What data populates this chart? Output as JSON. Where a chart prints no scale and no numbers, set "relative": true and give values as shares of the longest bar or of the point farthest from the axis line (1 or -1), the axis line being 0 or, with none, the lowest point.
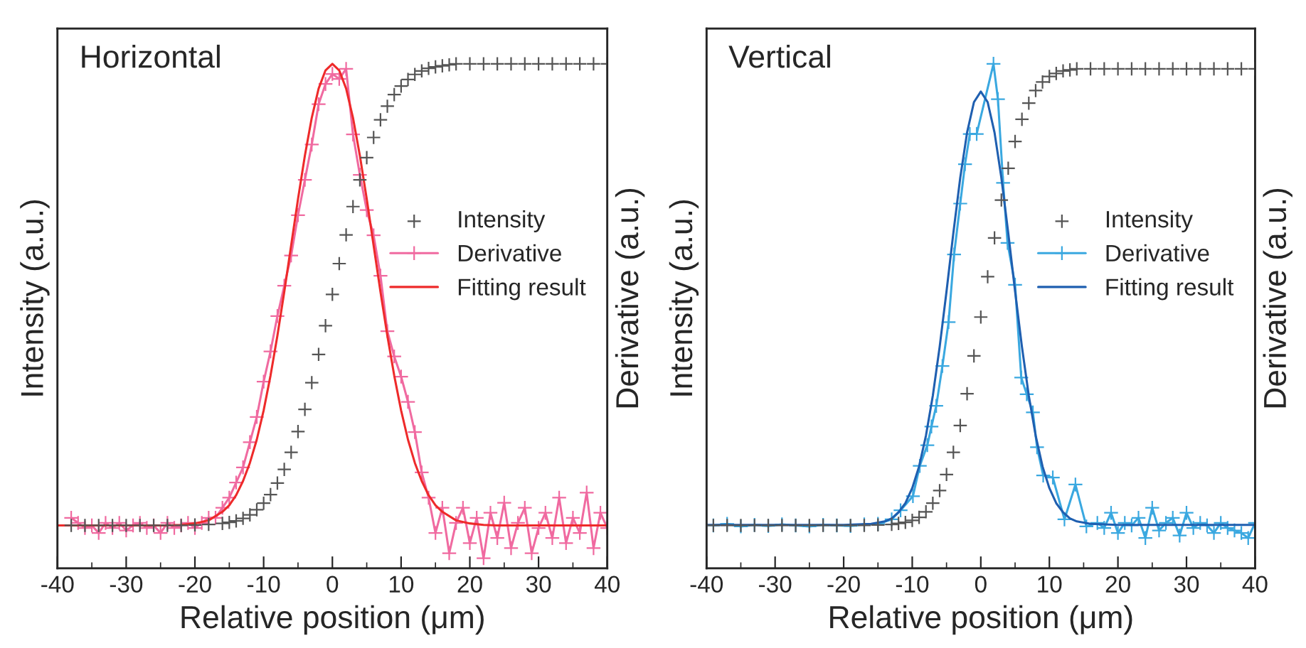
{
  "chart_data": [
    {
      "type": "line",
      "title": "Horizontal",
      "xlabel": "Relative position (μm)",
      "ylabel": "Intensity (a.u.)",
      "y2label": "Derivative (a.u.)",
      "relative": true,
      "xlim": [
        -40,
        40
      ],
      "xticks": [
        -40,
        -30,
        -20,
        -10,
        0,
        10,
        20,
        30,
        40
      ],
      "grid": false,
      "legend": "right",
      "series": [
        {
          "name": "Intensity",
          "type": "scatter",
          "marker": "cross",
          "color": "#555555",
          "x": [
            -38,
            -36,
            -34,
            -32,
            -30,
            -28,
            -26,
            -24,
            -22,
            -20,
            -18,
            -16,
            -15,
            -14,
            -13,
            -12,
            -11,
            -10,
            -9,
            -8,
            -7,
            -6,
            -5,
            -4,
            -3,
            -2,
            -1,
            0,
            1,
            2,
            3,
            4,
            5,
            6,
            7,
            8,
            9,
            10,
            11,
            12,
            13,
            14,
            15,
            16,
            17,
            18,
            20,
            22,
            24,
            26,
            28,
            30,
            32,
            34,
            36,
            38,
            40
          ],
          "values": [
            0.085,
            0.085,
            0.085,
            0.085,
            0.085,
            0.085,
            0.085,
            0.085,
            0.085,
            0.086,
            0.087,
            0.089,
            0.091,
            0.094,
            0.099,
            0.106,
            0.116,
            0.129,
            0.146,
            0.169,
            0.196,
            0.23,
            0.271,
            0.315,
            0.368,
            0.424,
            0.481,
            0.543,
            0.604,
            0.661,
            0.717,
            0.77,
            0.814,
            0.854,
            0.889,
            0.916,
            0.939,
            0.956,
            0.969,
            0.979,
            0.986,
            0.991,
            0.994,
            0.996,
            0.998,
            1.0,
            1.0,
            1.0,
            1.0,
            1.0,
            1.0,
            1.0,
            1.0,
            1.0,
            1.0,
            1.0,
            1.0
          ]
        },
        {
          "name": "Derivative",
          "type": "line",
          "marker": "cross",
          "color": "#f06aa0",
          "x": [
            -38,
            -37,
            -36,
            -35,
            -34,
            -33,
            -32,
            -31,
            -30,
            -29,
            -28,
            -27,
            -26,
            -25,
            -24,
            -23,
            -22,
            -21,
            -20,
            -19,
            -18,
            -17,
            -16,
            -15,
            -14,
            -13,
            -12,
            -11,
            -10,
            -9,
            -8,
            -7,
            -6,
            -5,
            -4,
            -3,
            -2,
            -1,
            0,
            1,
            2,
            3,
            4,
            5,
            6,
            7,
            8,
            9,
            10,
            11,
            12,
            13,
            14,
            15,
            16,
            17,
            18,
            19,
            20,
            21,
            22,
            23,
            24,
            25,
            26,
            27,
            28,
            29,
            30,
            31,
            32,
            33,
            34,
            35,
            36,
            37,
            38,
            39,
            40
          ],
          "values": [
            0.1,
            0.09,
            0.08,
            0.085,
            0.07,
            0.09,
            0.08,
            0.09,
            0.075,
            0.085,
            0.09,
            0.08,
            0.085,
            0.07,
            0.09,
            0.08,
            0.085,
            0.09,
            0.08,
            0.09,
            0.1,
            0.1,
            0.12,
            0.14,
            0.17,
            0.2,
            0.25,
            0.3,
            0.37,
            0.43,
            0.5,
            0.56,
            0.62,
            0.7,
            0.77,
            0.84,
            0.92,
            0.96,
            0.98,
            0.97,
            0.99,
            0.86,
            0.78,
            0.71,
            0.66,
            0.58,
            0.47,
            0.42,
            0.38,
            0.33,
            0.27,
            0.19,
            0.14,
            0.07,
            0.12,
            0.03,
            0.09,
            0.12,
            0.05,
            0.1,
            0.02,
            0.11,
            0.06,
            0.13,
            0.04,
            0.09,
            0.12,
            0.03,
            0.08,
            0.11,
            0.06,
            0.14,
            0.05,
            0.1,
            0.07,
            0.15,
            0.04,
            0.11,
            0.08
          ]
        },
        {
          "name": "Fitting result",
          "marker": "none",
          "color": "#ee2a2a",
          "x": [
            -40,
            -30,
            -24,
            -22,
            -20,
            -18,
            -16,
            -15,
            -14,
            -13,
            -12,
            -11,
            -10,
            -9,
            -8,
            -7,
            -6,
            -5,
            -4,
            -3,
            -2,
            -1,
            0,
            1,
            2,
            3,
            4,
            5,
            6,
            7,
            8,
            9,
            10,
            11,
            12,
            13,
            14,
            15,
            16,
            18,
            20,
            22,
            24,
            30,
            40
          ],
          "values": [
            0.085,
            0.085,
            0.085,
            0.086,
            0.089,
            0.095,
            0.112,
            0.125,
            0.145,
            0.173,
            0.209,
            0.255,
            0.313,
            0.382,
            0.461,
            0.548,
            0.64,
            0.732,
            0.818,
            0.893,
            0.951,
            0.987,
            1.0,
            0.987,
            0.951,
            0.893,
            0.818,
            0.732,
            0.64,
            0.548,
            0.461,
            0.382,
            0.313,
            0.255,
            0.209,
            0.173,
            0.145,
            0.125,
            0.112,
            0.095,
            0.089,
            0.086,
            0.085,
            0.085,
            0.085
          ]
        }
      ]
    },
    {
      "type": "line",
      "title": "Vertical",
      "xlabel": "Relative position (μm)",
      "ylabel": "Intensity (a.u.)",
      "y2label": "Derivative (a.u.)",
      "relative": true,
      "xlim": [
        -40,
        40
      ],
      "xticks": [
        -40,
        -30,
        -20,
        -10,
        0,
        10,
        20,
        30,
        40
      ],
      "grid": false,
      "legend": "right",
      "series": [
        {
          "name": "Intensity",
          "type": "scatter",
          "marker": "cross",
          "color": "#555555",
          "x": [
            -39,
            -37,
            -35,
            -33,
            -31,
            -29,
            -27,
            -25,
            -23,
            -21,
            -19,
            -17,
            -15,
            -13,
            -12,
            -11,
            -10,
            -9,
            -8,
            -7,
            -6,
            -5,
            -4,
            -3,
            -2,
            -1,
            0,
            1,
            2,
            3,
            4,
            5,
            6,
            7,
            8,
            9,
            10,
            11,
            12,
            13,
            14,
            16,
            18,
            20,
            22,
            24,
            26,
            28,
            30,
            32,
            34,
            36,
            38,
            40
          ],
          "values": [
            0.085,
            0.085,
            0.085,
            0.085,
            0.085,
            0.085,
            0.085,
            0.085,
            0.085,
            0.085,
            0.085,
            0.085,
            0.086,
            0.087,
            0.089,
            0.091,
            0.095,
            0.101,
            0.112,
            0.129,
            0.154,
            0.186,
            0.23,
            0.283,
            0.346,
            0.421,
            0.498,
            0.578,
            0.655,
            0.73,
            0.793,
            0.846,
            0.89,
            0.922,
            0.947,
            0.964,
            0.975,
            0.981,
            0.986,
            0.988,
            0.99,
            0.99,
            0.99,
            0.99,
            0.99,
            0.99,
            0.99,
            0.99,
            0.99,
            0.99,
            0.99,
            0.99,
            0.99,
            0.99
          ]
        },
        {
          "name": "Derivative",
          "type": "line",
          "marker": "cross",
          "color": "#3aa8e0",
          "x": [
            -39,
            -37,
            -35,
            -33,
            -31,
            -29,
            -27,
            -25,
            -23,
            -21,
            -19,
            -17,
            -15,
            -13.0,
            -11.7,
            -9.9,
            -8.9,
            -7.8,
            -7.2,
            -6.5,
            -5.6,
            -4.7,
            -3.9,
            -3.0,
            -2.3,
            -1.6,
            -0.6,
            1.85,
            2.5,
            3.25,
            3.9,
            5.0,
            5.9,
            6.7,
            7.6,
            8.2,
            9.1,
            10.5,
            12.2,
            13.8,
            15.4,
            17,
            18,
            19,
            20,
            21,
            22,
            23,
            24,
            25,
            26,
            27,
            28,
            29,
            30,
            31,
            32,
            33,
            34,
            35,
            36,
            37,
            38,
            39,
            40
          ],
          "values": [
            0.085,
            0.088,
            0.083,
            0.086,
            0.084,
            0.087,
            0.085,
            0.083,
            0.086,
            0.085,
            0.084,
            0.087,
            0.088,
            0.097,
            0.115,
            0.143,
            0.203,
            0.244,
            0.281,
            0.322,
            0.401,
            0.488,
            0.622,
            0.723,
            0.801,
            0.861,
            0.861,
            1.0,
            0.93,
            0.764,
            0.645,
            0.562,
            0.378,
            0.345,
            0.309,
            0.24,
            0.184,
            0.18,
            0.097,
            0.166,
            0.083,
            0.09,
            0.08,
            0.11,
            0.07,
            0.09,
            0.085,
            0.1,
            0.06,
            0.12,
            0.075,
            0.09,
            0.1,
            0.065,
            0.11,
            0.08,
            0.09,
            0.085,
            0.07,
            0.09,
            0.08,
            0.075,
            0.07,
            0.06,
            0.09
          ]
        },
        {
          "name": "Fitting result",
          "marker": "none",
          "color": "#1f5fb0",
          "x": [
            -40,
            -20,
            -16,
            -14,
            -13,
            -12,
            -11,
            -10,
            -9,
            -8,
            -7,
            -6,
            -5,
            -4,
            -3,
            -2,
            -1,
            0,
            1,
            2,
            3,
            4,
            5,
            6,
            7,
            8,
            9,
            10,
            11,
            12,
            13,
            14,
            16,
            20,
            40
          ],
          "values": [
            0.086,
            0.086,
            0.088,
            0.093,
            0.099,
            0.111,
            0.129,
            0.159,
            0.202,
            0.263,
            0.342,
            0.439,
            0.549,
            0.665,
            0.774,
            0.864,
            0.924,
            0.945,
            0.924,
            0.864,
            0.774,
            0.665,
            0.549,
            0.439,
            0.342,
            0.263,
            0.202,
            0.159,
            0.129,
            0.111,
            0.099,
            0.093,
            0.088,
            0.086,
            0.086
          ]
        }
      ]
    }
  ]
}
